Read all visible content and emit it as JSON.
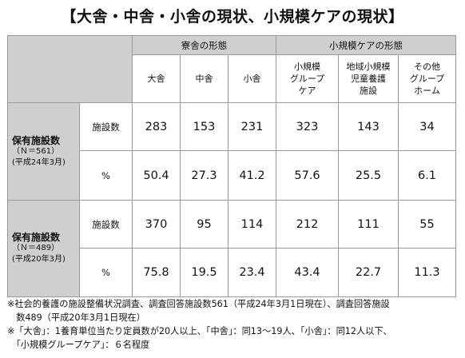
{
  "title": "【大舎・中舎・小舎の現状、小規模ケアの現状】",
  "table": {
    "group_headers": [
      "寮舎の形態",
      "小規模ケアの形態"
    ],
    "columns": [
      "大舎",
      "中舎",
      "小舎",
      "小規模\nグループ\nケア",
      "地域小規模\n児童養護\n施設",
      "その他\nグループ\nホーム"
    ],
    "blocks": [
      {
        "label": "保有施設数",
        "n": "（Ｎ＝561）",
        "date": "(平成24年3月)",
        "rows": [
          {
            "kind": "施設数",
            "values": [
              "283",
              "153",
              "231",
              "323",
              "143",
              "34"
            ]
          },
          {
            "kind": "%",
            "values": [
              "50.4",
              "27.3",
              "41.2",
              "57.6",
              "25.5",
              "6.1"
            ]
          }
        ]
      },
      {
        "label": "保有施設数",
        "n": "（Ｎ＝489）",
        "date": "(平成20年3月)",
        "rows": [
          {
            "kind": "施設数",
            "values": [
              "370",
              "95",
              "114",
              "212",
              "111",
              "55"
            ]
          },
          {
            "kind": "%",
            "values": [
              "75.8",
              "19.5",
              "23.4",
              "43.4",
              "22.7",
              "11.3"
            ]
          }
        ]
      }
    ]
  },
  "notes": [
    "※社会的養護の施設整備状況調査、調査回答施設数561（平成24年3月1日現在）、調査回答施設",
    "　数489（平成20年3月1日現在）",
    "※「大舎」：1養育単位当たり定員数が20人以上、「中舎」：同13～19人、「小舎」：同12人以下、",
    "　「小規模グループケア」：６名程度"
  ]
}
